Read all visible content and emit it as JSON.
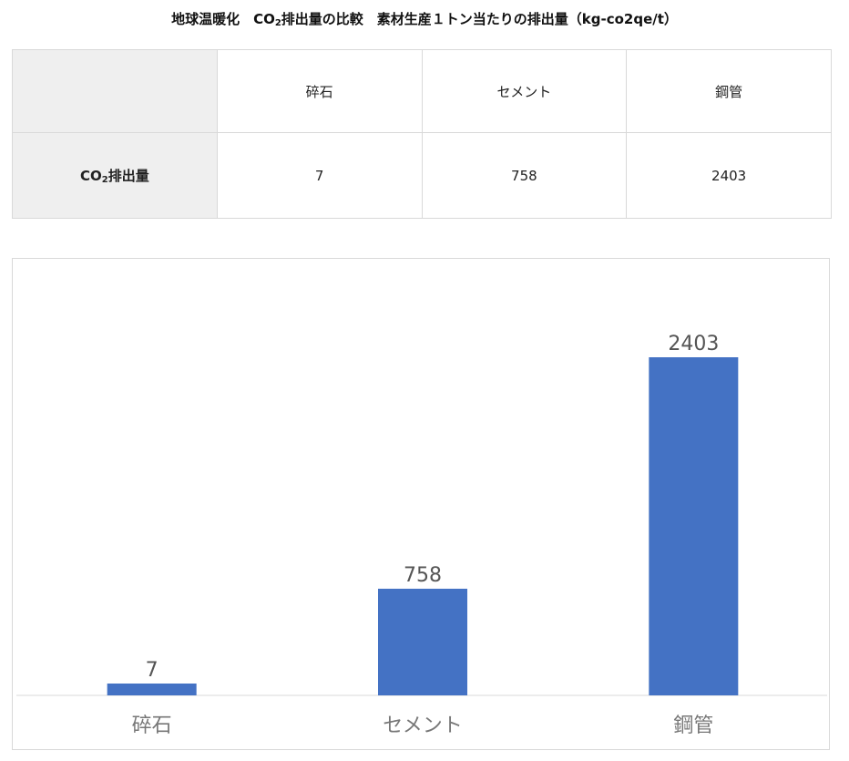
{
  "title": {
    "prefix": "地球温暖化　CO",
    "sub": "2",
    "suffix": "排出量の比較　素材生産１トン当たりの排出量（kg-co2qe/t）"
  },
  "table": {
    "columns": [
      "碎石",
      "セメント",
      "鋼管"
    ],
    "row_label": {
      "prefix": "CO",
      "sub": "2",
      "suffix": "排出量"
    },
    "values": [
      "7",
      "758",
      "2403"
    ]
  },
  "chart_data": {
    "type": "bar",
    "categories": [
      "碎石",
      "セメント",
      "鋼管"
    ],
    "values": [
      7,
      758,
      2403
    ],
    "title": "",
    "xlabel": "",
    "ylabel": "",
    "grid": false,
    "legend": "none",
    "bar_color": "#4472c4"
  }
}
